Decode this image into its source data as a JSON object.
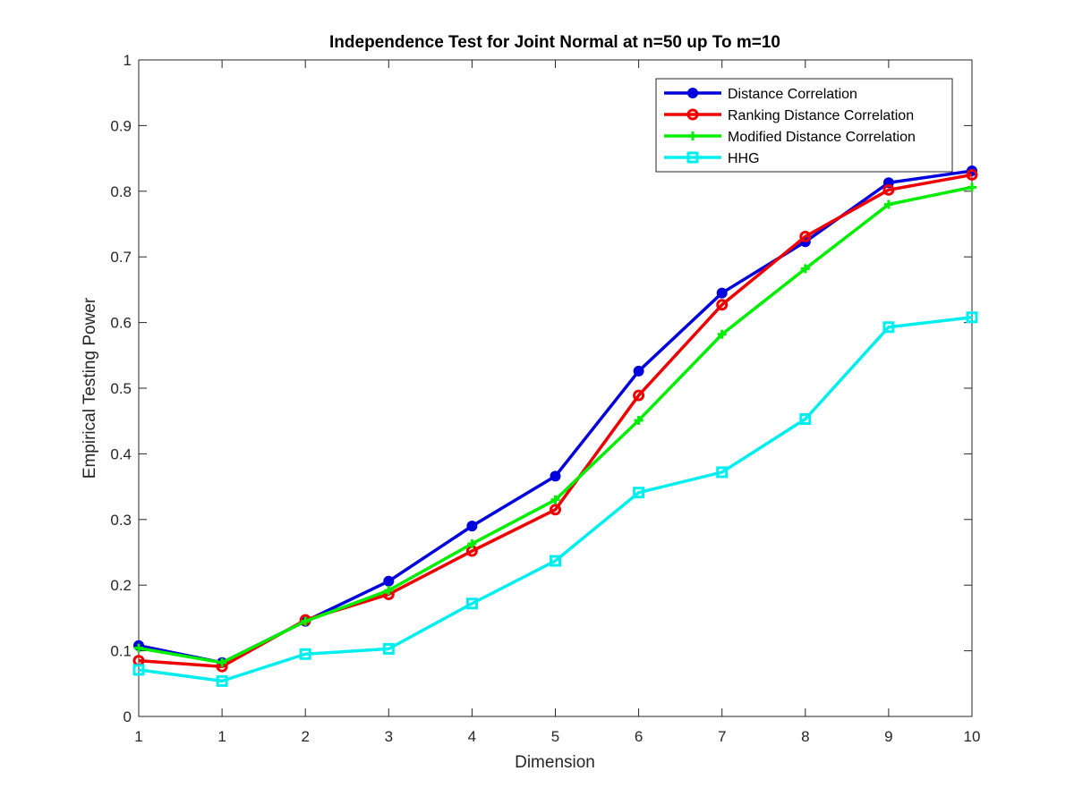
{
  "chart_data": {
    "type": "line",
    "title": "Independence Test for Joint Normal at n=50 up To m=10",
    "xlabel": "Dimension",
    "ylabel": "Empirical Testing Power",
    "x_tick_labels": [
      "1",
      "1",
      "2",
      "3",
      "4",
      "5",
      "6",
      "7",
      "8",
      "9",
      "10"
    ],
    "y_ticks": [
      0,
      0.1,
      0.2,
      0.3,
      0.4,
      0.5,
      0.6,
      0.7,
      0.8,
      0.9,
      1
    ],
    "y_tick_labels": [
      "0",
      "0.1",
      "0.2",
      "0.3",
      "0.4",
      "0.5",
      "0.6",
      "0.7",
      "0.8",
      "0.9",
      "1"
    ],
    "ylim": [
      0,
      1
    ],
    "grid": false,
    "legend_position": "top-right",
    "series": [
      {
        "name": "Distance Correlation",
        "color": "#0000dd",
        "marker": "filled-circle",
        "values": [
          0.108,
          0.082,
          0.145,
          0.206,
          0.29,
          0.366,
          0.526,
          0.645,
          0.723,
          0.813,
          0.831
        ]
      },
      {
        "name": "Ranking Distance Correlation",
        "color": "#ee0000",
        "marker": "open-circle",
        "values": [
          0.085,
          0.076,
          0.147,
          0.186,
          0.252,
          0.315,
          0.489,
          0.627,
          0.731,
          0.802,
          0.825
        ]
      },
      {
        "name": "Modified Distance Correlation",
        "color": "#00ee00",
        "marker": "plus",
        "values": [
          0.104,
          0.082,
          0.145,
          0.192,
          0.263,
          0.33,
          0.451,
          0.582,
          0.682,
          0.78,
          0.806
        ]
      },
      {
        "name": "HHG",
        "color": "#00eeee",
        "marker": "open-square",
        "values": [
          0.071,
          0.054,
          0.095,
          0.103,
          0.172,
          0.237,
          0.341,
          0.372,
          0.453,
          0.593,
          0.608
        ]
      }
    ]
  }
}
